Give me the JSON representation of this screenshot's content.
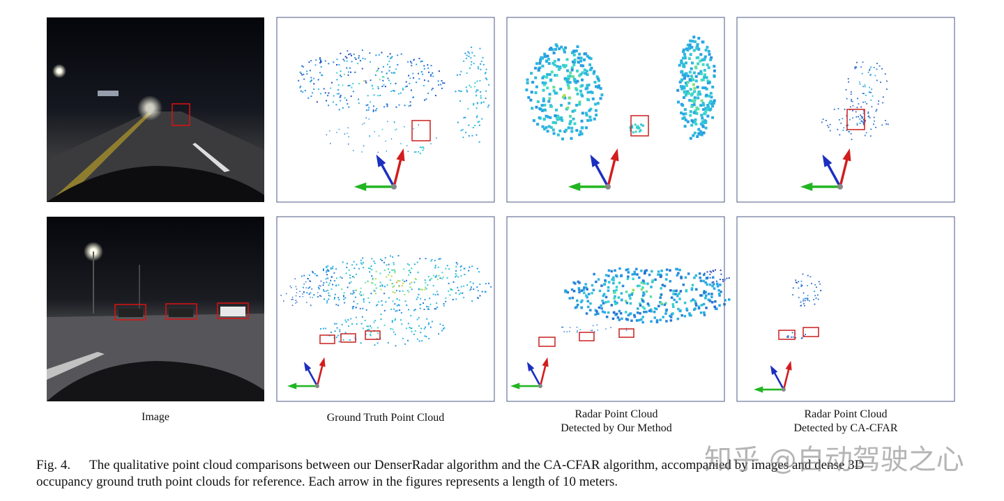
{
  "figure": {
    "columns": [
      {
        "lines": [
          "Image"
        ]
      },
      {
        "lines": [
          "Ground Truth Point Cloud"
        ]
      },
      {
        "lines": [
          "Radar Point Cloud",
          "Detected by Our Method"
        ]
      },
      {
        "lines": [
          "Radar Point Cloud",
          "Detected by CA-CFAR"
        ]
      }
    ],
    "caption": {
      "label": "Fig. 4.",
      "lines": [
        "The qualitative point cloud comparisons between our DenserRadar algorithm and the CA-CFAR algorithm, accompanied by images and dense 3D",
        "occupancy ground truth point clouds for reference. Each arrow in the figures represents a length of 10 meters."
      ]
    }
  },
  "watermark": "知乎 @自动驾驶之心"
}
